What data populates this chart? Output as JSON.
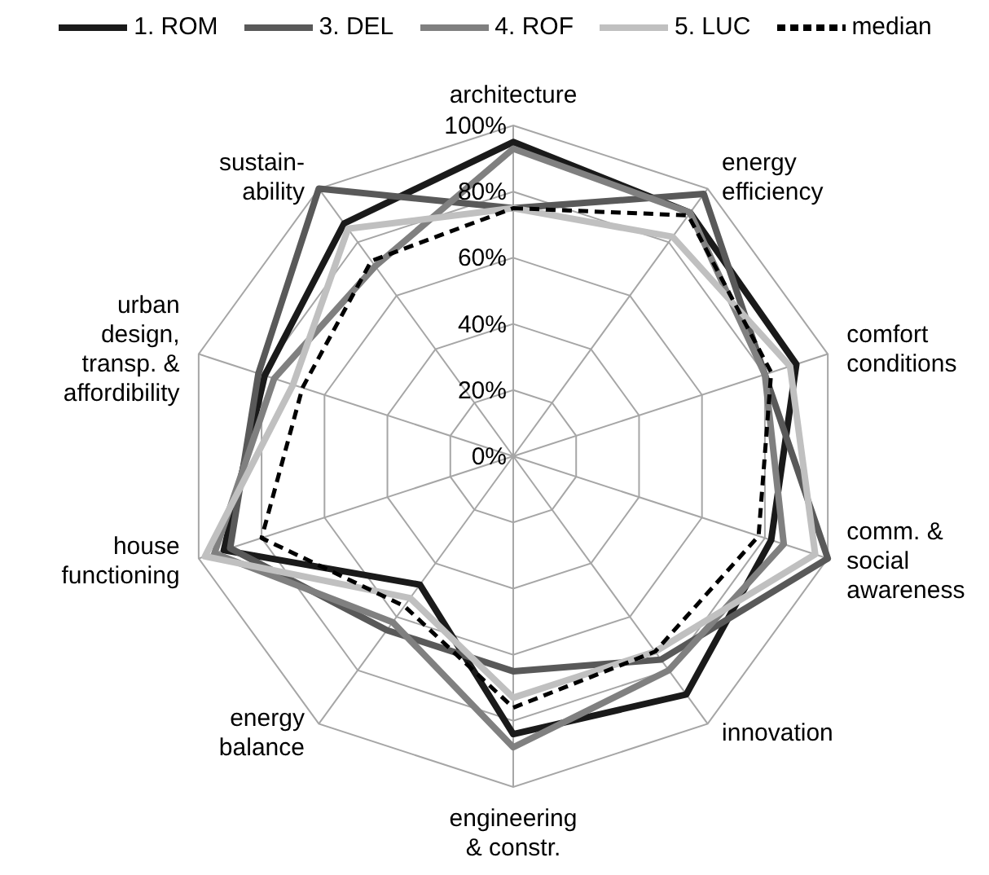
{
  "chart_data": {
    "type": "radar",
    "categories": [
      "architecture",
      "energy\nefficiency",
      "comfort\nconditions",
      "comm. &\nsocial\nawareness",
      "innovation",
      "engineering\n& constr.",
      "energy\nbalance",
      "house\nfunctioning",
      "urban\ndesign,\ntransp. &\naffordibility",
      "sustain-\nability"
    ],
    "series": [
      {
        "name": "1. ROM",
        "color": "#1a1a1a",
        "values": [
          95,
          91,
          90,
          82,
          89,
          84,
          48,
          92,
          79,
          87
        ]
      },
      {
        "name": "3. DEL",
        "color": "#595959",
        "values": [
          75,
          98,
          80,
          100,
          76,
          65,
          65,
          90,
          81,
          100
        ]
      },
      {
        "name": "4. ROF",
        "color": "#808080",
        "values": [
          93,
          91,
          80,
          86,
          80,
          88,
          62,
          95,
          76,
          71
        ]
      },
      {
        "name": "5. LUC",
        "color": "#c0c0c0",
        "values": [
          75,
          82,
          88,
          96,
          73,
          73,
          53,
          98,
          70,
          85
        ]
      },
      {
        "name": "median",
        "color": "#000000",
        "line_style": "dashed",
        "values": [
          75,
          90,
          82,
          78,
          73,
          76,
          56,
          80,
          67,
          73
        ]
      }
    ],
    "ylim": [
      0,
      100
    ],
    "yticks": [
      {
        "value": 0,
        "label": "0%"
      },
      {
        "value": 20,
        "label": "20%"
      },
      {
        "value": 40,
        "label": "40%"
      },
      {
        "value": 60,
        "label": "60%"
      },
      {
        "value": 80,
        "label": "80%"
      },
      {
        "value": 100,
        "label": "100%"
      }
    ],
    "grid": true,
    "legend": "top",
    "marker": "none"
  }
}
